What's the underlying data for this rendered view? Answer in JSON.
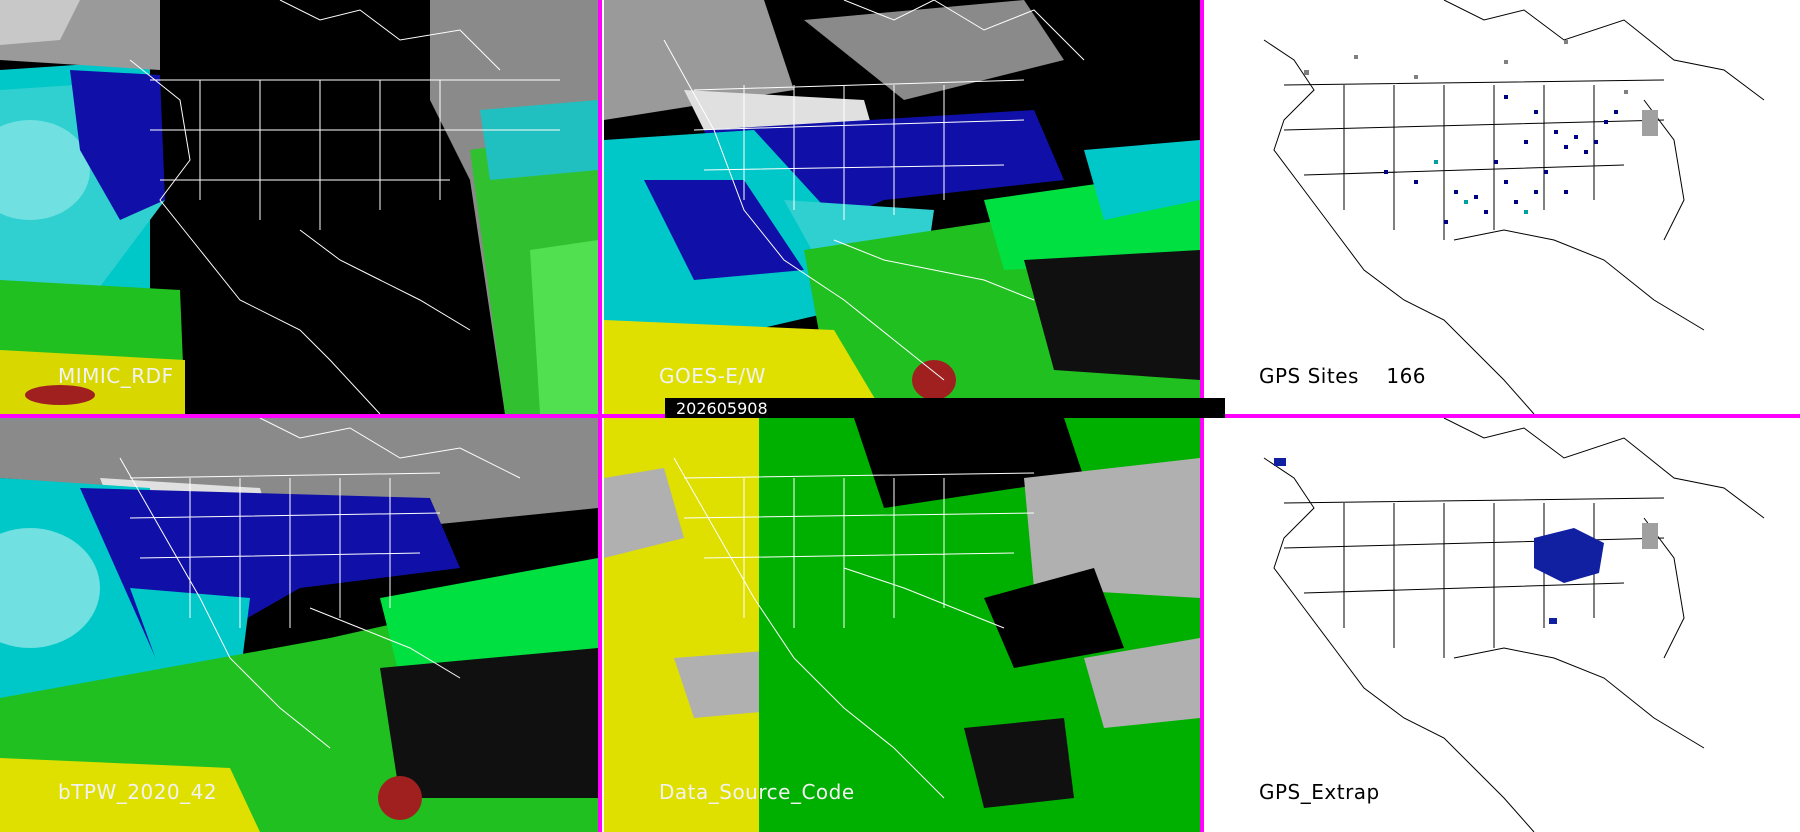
{
  "panels": [
    {
      "id": "mimic",
      "label": "MIMIC_RDF"
    },
    {
      "id": "goes",
      "label": "GOES-E/W"
    },
    {
      "id": "gps-sites",
      "label": "GPS Sites    166"
    },
    {
      "id": "btpw",
      "label": "bTPW_2020_42"
    },
    {
      "id": "dsc",
      "label": "Data_Source_Code"
    },
    {
      "id": "gps-extrap",
      "label": "GPS_Extrap"
    }
  ],
  "timestamp": "202605908",
  "colors": {
    "divider": "#ff00ff",
    "tpw_scale": [
      "#b0b0b0",
      "#1a1aa0",
      "#0000ff",
      "#00e0e0",
      "#20c020",
      "#00ff40",
      "#e0e000",
      "#a02020"
    ],
    "source_goes": "#00b000",
    "source_mimic": "#e0e000",
    "source_missing": "#b0b0b0",
    "gps_site_colors": [
      "#000080",
      "#00a0a0",
      "#808080"
    ]
  }
}
